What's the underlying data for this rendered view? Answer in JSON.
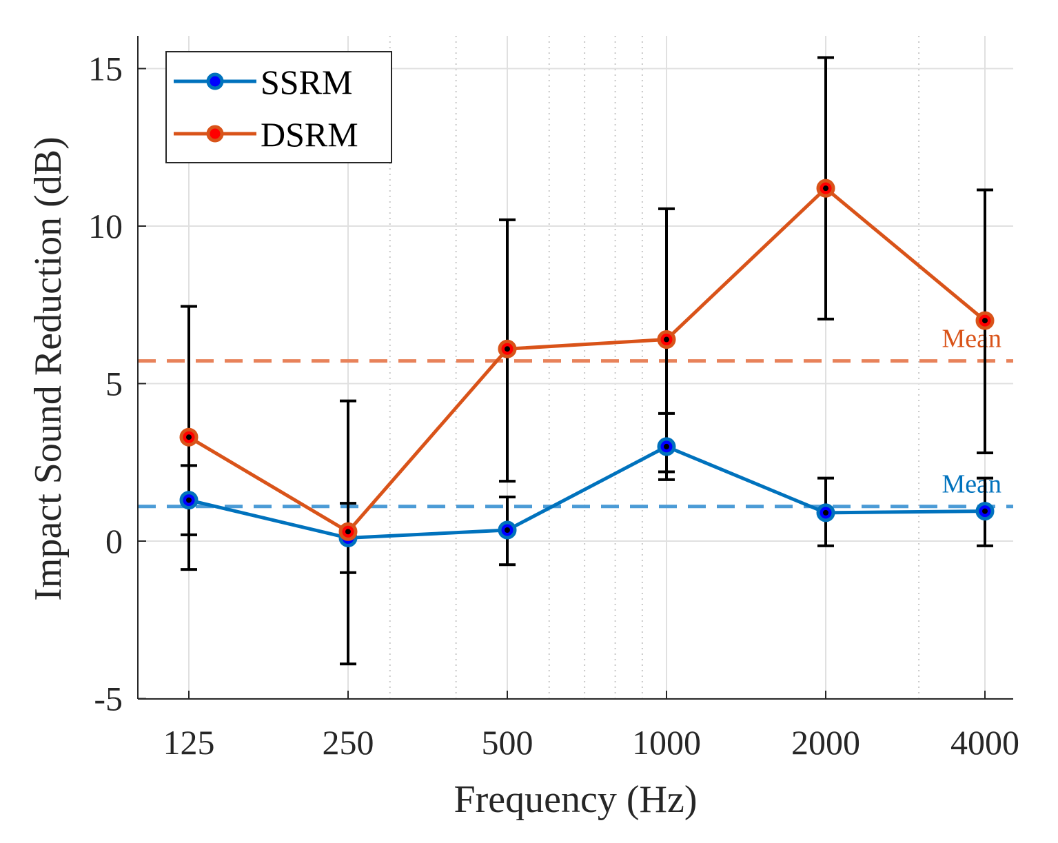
{
  "chart_data": {
    "type": "line",
    "xscale": "log",
    "xlabel": "Frequency (Hz)",
    "ylabel": "Impact Sound Reduction (dB)",
    "x": [
      125,
      250,
      500,
      1000,
      2000,
      4000
    ],
    "x_tick_labels": [
      "125",
      "250",
      "500",
      "1000",
      "2000",
      "4000"
    ],
    "minor_x_ticks": [
      300,
      400,
      600,
      700,
      800,
      900,
      3000
    ],
    "ylim": [
      -5,
      16
    ],
    "y_ticks": [
      -5,
      0,
      5,
      10,
      15
    ],
    "y_tick_labels": [
      "-5",
      "0",
      "5",
      "10",
      "15"
    ],
    "grid": true,
    "legend_position": "top-left",
    "series": [
      {
        "name": "SSRM",
        "color": "#0072BD",
        "marker_color": "#0000FF",
        "values": [
          1.3,
          0.1,
          0.35,
          3.0,
          0.9,
          0.95
        ],
        "err_low": [
          -0.9,
          -1.0,
          -0.75,
          2.2,
          -0.15,
          -0.15
        ],
        "err_high": [
          2.4,
          1.2,
          1.4,
          4.05,
          2.0,
          2.0
        ],
        "mean": 1.1,
        "mean_color": "#4B9BD6",
        "mean_label": "Mean"
      },
      {
        "name": "DSRM",
        "color": "#D95319",
        "marker_color": "#FF0000",
        "values": [
          3.3,
          0.3,
          6.1,
          6.4,
          11.2,
          7.0
        ],
        "err_low": [
          0.2,
          -3.9,
          1.9,
          1.95,
          7.05,
          2.8
        ],
        "err_high": [
          7.45,
          4.45,
          10.2,
          10.55,
          15.35,
          11.15
        ],
        "mean": 5.72,
        "mean_color": "#E8825A",
        "mean_label": "Mean"
      }
    ]
  }
}
